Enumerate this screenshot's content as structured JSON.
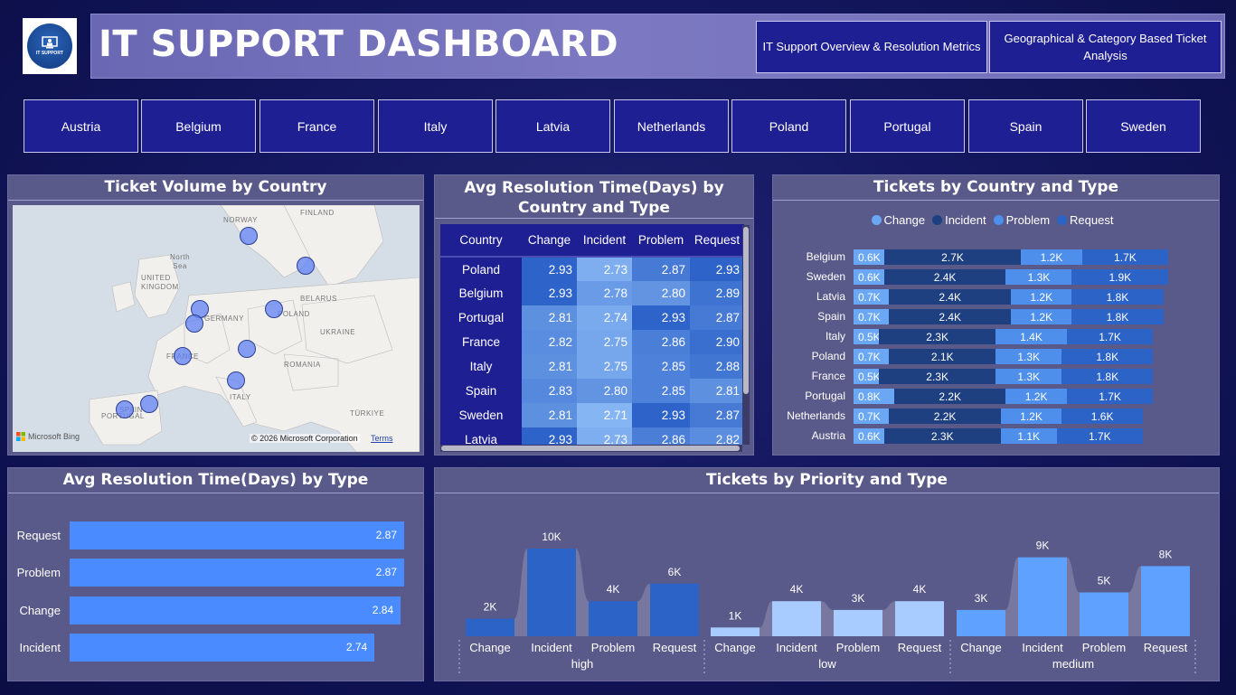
{
  "header": {
    "logo_text": "IT SUPPORT",
    "title": "IT SUPPORT DASHBOARD",
    "nav": [
      "IT Support Overview & Resolution Metrics",
      "Geographical & Category Based Ticket Analysis"
    ]
  },
  "countries": [
    "Austria",
    "Belgium",
    "France",
    "Italy",
    "Latvia",
    "Netherlands",
    "Poland",
    "Portugal",
    "Spain",
    "Sweden"
  ],
  "map": {
    "title": "Ticket Volume by Country",
    "labels": [
      "NORWAY",
      "FINLAND",
      "North Sea",
      "UNITED KINGDOM",
      "BELARUS",
      "GERMANY",
      "POLAND",
      "UKRAINE",
      "FRANCE",
      "ROMANIA",
      "PORTUGAL",
      "TÜRKIYE",
      "ITALY",
      "SPAIN"
    ],
    "bing": "Microsoft Bing",
    "copyright": "© 2026 Microsoft Corporation",
    "terms": "Terms"
  },
  "heatmap": {
    "title": "Avg Resolution Time(Days) by Country and Type",
    "columns": [
      "Country",
      "Change",
      "Incident",
      "Problem",
      "Request"
    ],
    "rows": [
      {
        "country": "Poland",
        "values": [
          "2.93",
          "2.73",
          "2.87",
          "2.93"
        ]
      },
      {
        "country": "Belgium",
        "values": [
          "2.93",
          "2.78",
          "2.80",
          "2.89"
        ]
      },
      {
        "country": "Portugal",
        "values": [
          "2.81",
          "2.74",
          "2.93",
          "2.87"
        ]
      },
      {
        "country": "France",
        "values": [
          "2.82",
          "2.75",
          "2.86",
          "2.90"
        ]
      },
      {
        "country": "Italy",
        "values": [
          "2.81",
          "2.75",
          "2.85",
          "2.88"
        ]
      },
      {
        "country": "Spain",
        "values": [
          "2.83",
          "2.80",
          "2.85",
          "2.81"
        ]
      },
      {
        "country": "Sweden",
        "values": [
          "2.81",
          "2.71",
          "2.93",
          "2.87"
        ]
      },
      {
        "country": "Latvia",
        "values": [
          "2.93",
          "2.73",
          "2.86",
          "2.82"
        ]
      }
    ]
  },
  "chart_data": [
    {
      "type": "bar",
      "orientation": "horizontal-stacked",
      "title": "Tickets by Country and Type",
      "categories": [
        "Belgium",
        "Sweden",
        "Latvia",
        "Spain",
        "Italy",
        "Poland",
        "France",
        "Portugal",
        "Netherlands",
        "Austria"
      ],
      "series": [
        {
          "name": "Change",
          "color": "#6aa8f5",
          "values": [
            600,
            600,
            700,
            700,
            500,
            700,
            500,
            800,
            700,
            600
          ],
          "labels": [
            "0.6K",
            "0.6K",
            "0.7K",
            "0.7K",
            "0.5K",
            "0.7K",
            "0.5K",
            "0.8K",
            "0.7K",
            "0.6K"
          ]
        },
        {
          "name": "Incident",
          "color": "#1e3f80",
          "values": [
            2700,
            2400,
            2400,
            2400,
            2300,
            2100,
            2300,
            2200,
            2200,
            2300
          ],
          "labels": [
            "2.7K",
            "2.4K",
            "2.4K",
            "2.4K",
            "2.3K",
            "2.1K",
            "2.3K",
            "2.2K",
            "2.2K",
            "2.3K"
          ]
        },
        {
          "name": "Problem",
          "color": "#4d8fea",
          "values": [
            1200,
            1300,
            1200,
            1200,
            1400,
            1300,
            1300,
            1200,
            1200,
            1100
          ],
          "labels": [
            "1.2K",
            "1.3K",
            "1.2K",
            "1.2K",
            "1.4K",
            "1.3K",
            "1.3K",
            "1.2K",
            "1.2K",
            "1.1K"
          ]
        },
        {
          "name": "Request",
          "color": "#2b63c6",
          "values": [
            1700,
            1900,
            1800,
            1800,
            1700,
            1800,
            1800,
            1700,
            1600,
            1700
          ],
          "labels": [
            "1.7K",
            "1.9K",
            "1.8K",
            "1.8K",
            "1.7K",
            "1.8K",
            "1.8K",
            "1.7K",
            "1.6K",
            "1.7K"
          ]
        }
      ],
      "legend": "top-center"
    },
    {
      "type": "bar",
      "orientation": "horizontal",
      "title": "Avg Resolution Time(Days) by Type",
      "categories": [
        "Request",
        "Problem",
        "Change",
        "Incident"
      ],
      "values": [
        2.87,
        2.87,
        2.84,
        2.74
      ],
      "color": "#4a8cff"
    },
    {
      "type": "bar",
      "title": "Tickets by Priority and Type",
      "groups": [
        "high",
        "low",
        "medium"
      ],
      "categories": [
        "Change",
        "Incident",
        "Problem",
        "Request"
      ],
      "series": [
        {
          "name": "high",
          "color": "#2b63c6",
          "values": [
            2000,
            10000,
            4000,
            6000
          ],
          "labels": [
            "2K",
            "10K",
            "4K",
            "6K"
          ]
        },
        {
          "name": "low",
          "color": "#a8ccff",
          "values": [
            1000,
            4000,
            3000,
            4000
          ],
          "labels": [
            "1K",
            "4K",
            "3K",
            "4K"
          ]
        },
        {
          "name": "medium",
          "color": "#5ea1ff",
          "values": [
            3000,
            9000,
            5000,
            8000
          ],
          "labels": [
            "3K",
            "9K",
            "5K",
            "8K"
          ]
        }
      ]
    }
  ]
}
